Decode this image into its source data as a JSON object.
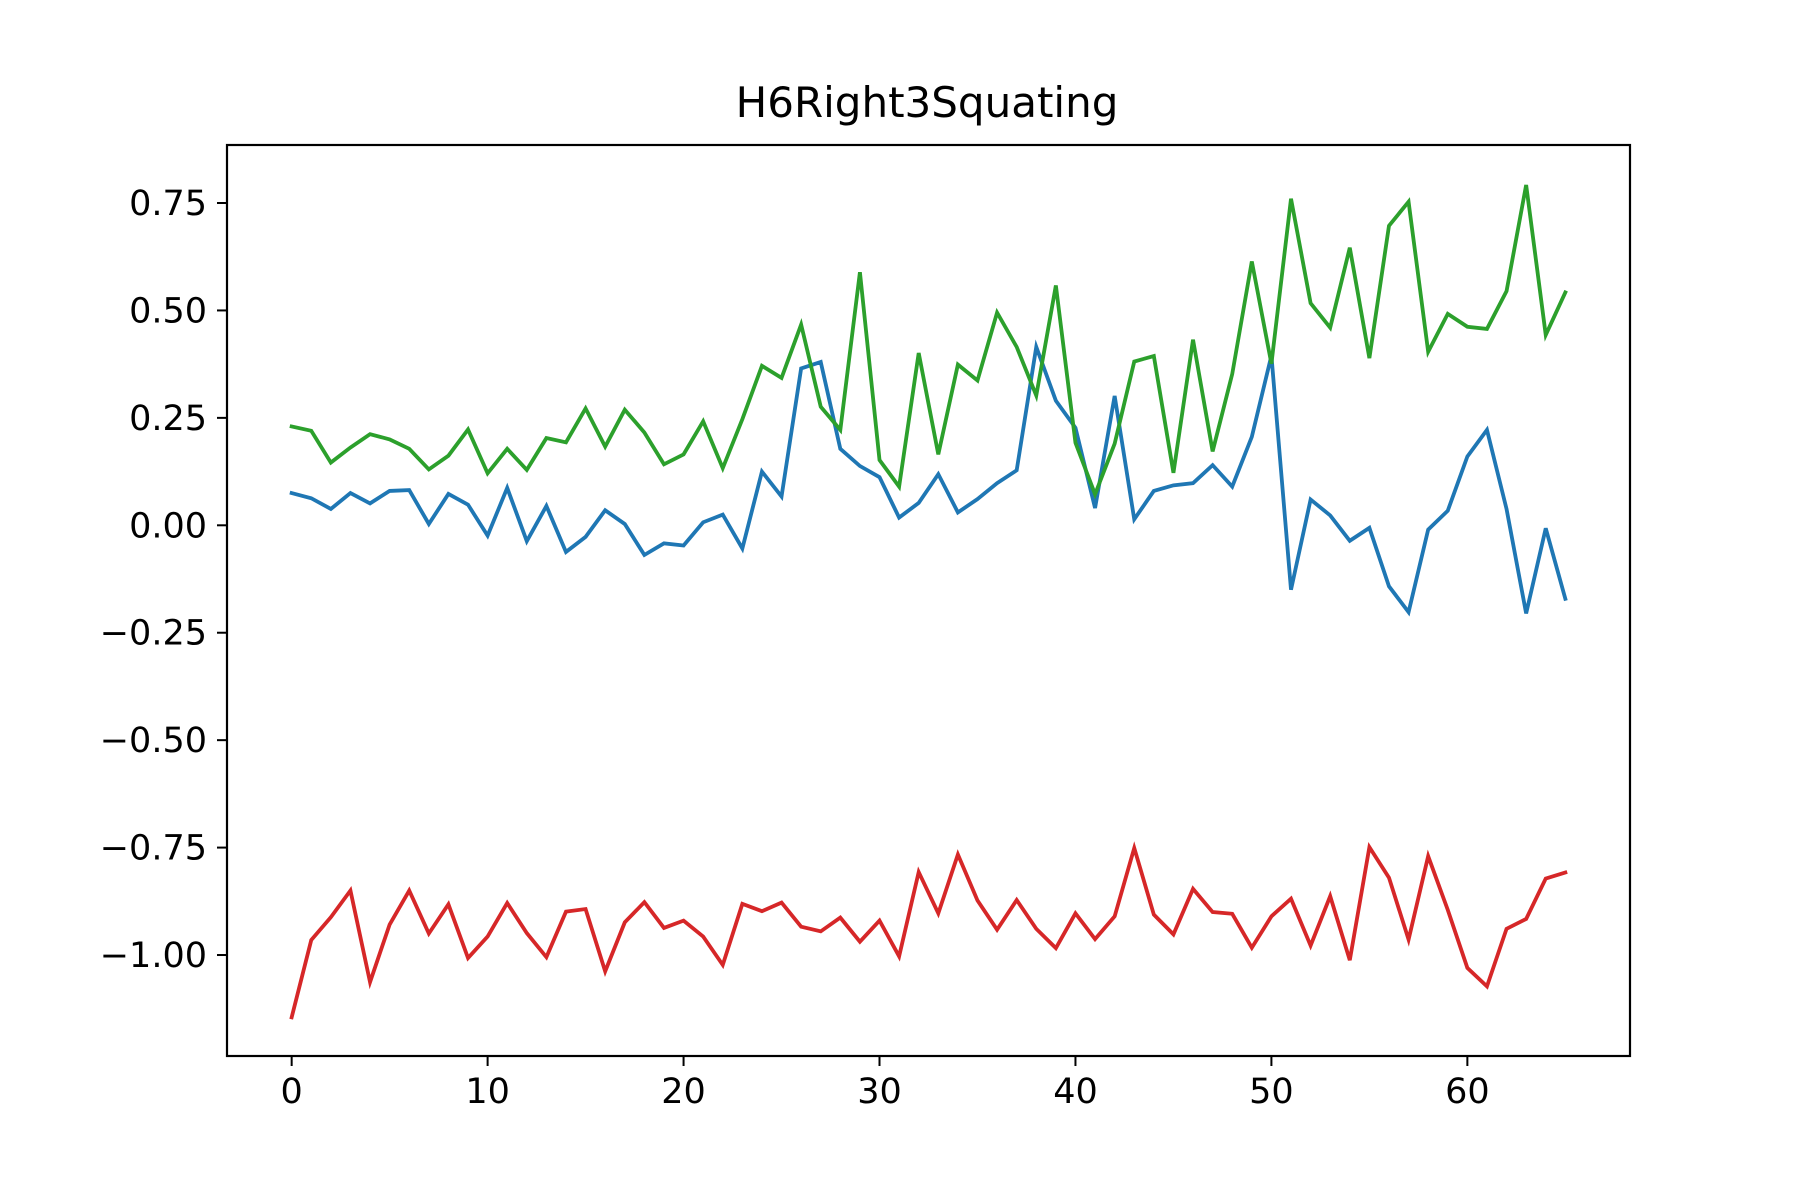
{
  "chart_data": {
    "type": "line",
    "title": "H6Right3Squating",
    "xlabel": "",
    "ylabel": "",
    "xlim": [
      -3.3,
      68.3
    ],
    "ylim": [
      -1.235,
      0.885
    ],
    "x_ticks": [
      0,
      10,
      20,
      30,
      40,
      50,
      60
    ],
    "y_ticks": [
      0.75,
      0.5,
      0.25,
      0.0,
      -0.25,
      -0.5,
      -0.75,
      -1.0
    ],
    "x_tick_labels": [
      "0",
      "10",
      "20",
      "30",
      "40",
      "50",
      "60"
    ],
    "y_tick_labels": [
      "0.75",
      "0.50",
      "0.25",
      "0.00",
      "−0.25",
      "−0.50",
      "−0.75",
      "−1.00"
    ],
    "grid": false,
    "legend": "none",
    "x": [
      0,
      1,
      2,
      3,
      4,
      5,
      6,
      7,
      8,
      9,
      10,
      11,
      12,
      13,
      14,
      15,
      16,
      17,
      18,
      19,
      20,
      21,
      22,
      23,
      24,
      25,
      26,
      27,
      28,
      29,
      30,
      31,
      32,
      33,
      34,
      35,
      36,
      37,
      38,
      39,
      40,
      41,
      42,
      43,
      44,
      45,
      46,
      47,
      48,
      49,
      50,
      51,
      52,
      53,
      54,
      55,
      56,
      57,
      58,
      59,
      60,
      61,
      62,
      63,
      64,
      65
    ],
    "series": [
      {
        "color": "#1f77b4",
        "values": [
          0.075,
          0.063,
          0.038,
          0.075,
          0.051,
          0.08,
          0.082,
          0.003,
          0.073,
          0.048,
          -0.024,
          0.087,
          -0.037,
          0.045,
          -0.062,
          -0.027,
          0.035,
          0.003,
          -0.069,
          -0.042,
          -0.047,
          0.007,
          0.025,
          -0.054,
          0.125,
          0.067,
          0.365,
          0.38,
          0.178,
          0.138,
          0.112,
          0.018,
          0.052,
          0.119,
          0.03,
          0.061,
          0.098,
          0.128,
          0.415,
          0.29,
          0.227,
          0.04,
          0.301,
          0.014,
          0.08,
          0.093,
          0.098,
          0.14,
          0.09,
          0.206,
          0.395,
          -0.15,
          0.06,
          0.023,
          -0.036,
          -0.006,
          -0.142,
          -0.202,
          -0.01,
          0.034,
          0.16,
          0.222,
          0.038,
          -0.205,
          -0.007,
          -0.171
        ]
      },
      {
        "color": "#2ca02c",
        "values": [
          0.23,
          0.22,
          0.146,
          0.181,
          0.212,
          0.2,
          0.178,
          0.13,
          0.162,
          0.223,
          0.121,
          0.178,
          0.129,
          0.203,
          0.193,
          0.272,
          0.183,
          0.269,
          0.216,
          0.142,
          0.165,
          0.242,
          0.133,
          0.247,
          0.371,
          0.343,
          0.467,
          0.276,
          0.222,
          0.589,
          0.152,
          0.09,
          0.401,
          0.165,
          0.374,
          0.337,
          0.495,
          0.415,
          0.302,
          0.558,
          0.192,
          0.072,
          0.19,
          0.381,
          0.394,
          0.122,
          0.432,
          0.172,
          0.352,
          0.614,
          0.376,
          0.76,
          0.517,
          0.46,
          0.646,
          0.389,
          0.697,
          0.753,
          0.404,
          0.492,
          0.462,
          0.457,
          0.545,
          0.792,
          0.443,
          0.542
        ]
      },
      {
        "color": "#d62728",
        "values": [
          -1.145,
          -0.965,
          -0.912,
          -0.85,
          -1.063,
          -0.929,
          -0.85,
          -0.95,
          -0.882,
          -1.007,
          -0.957,
          -0.879,
          -0.949,
          -1.005,
          -0.899,
          -0.893,
          -1.038,
          -0.924,
          -0.877,
          -0.937,
          -0.92,
          -0.957,
          -1.023,
          -0.881,
          -0.898,
          -0.878,
          -0.934,
          -0.945,
          -0.913,
          -0.969,
          -0.92,
          -1.003,
          -0.807,
          -0.903,
          -0.766,
          -0.873,
          -0.941,
          -0.872,
          -0.939,
          -0.984,
          -0.903,
          -0.963,
          -0.91,
          -0.751,
          -0.906,
          -0.952,
          -0.846,
          -0.9,
          -0.904,
          -0.983,
          -0.91,
          -0.869,
          -0.978,
          -0.863,
          -1.012,
          -0.749,
          -0.82,
          -0.964,
          -0.77,
          -0.895,
          -1.03,
          -1.073,
          -0.939,
          -0.916,
          -0.822,
          -0.808
        ]
      }
    ]
  }
}
